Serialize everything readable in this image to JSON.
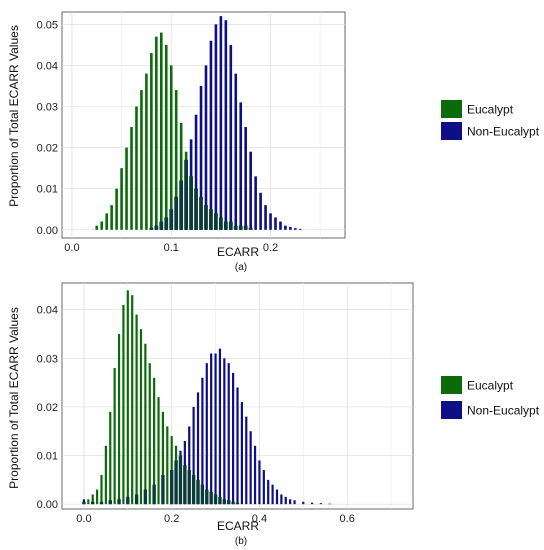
{
  "figure": {
    "y_label": "Proportion of Total ECARR Values"
  },
  "colors": {
    "eucalypt": "#0b6b0b",
    "non_eucalypt": "#0e0e87",
    "overlap": "#0a3a3a"
  },
  "chart_data": [
    {
      "type": "bar",
      "caption": "(a)",
      "xlabel": "ECARR",
      "xlim": [
        -0.01,
        0.275
      ],
      "ylim": [
        -0.002,
        0.053
      ],
      "x_ticks": [
        {
          "value": 0.0,
          "label": "0.0"
        },
        {
          "value": 0.1,
          "label": "0.1"
        },
        {
          "value": 0.2,
          "label": "0.2"
        }
      ],
      "y_ticks": [
        {
          "value": 0.0,
          "label": "0.00"
        },
        {
          "value": 0.01,
          "label": "0.01"
        },
        {
          "value": 0.02,
          "label": "0.02"
        },
        {
          "value": 0.03,
          "label": "0.03"
        },
        {
          "value": 0.04,
          "label": "0.04"
        },
        {
          "value": 0.05,
          "label": "0.05"
        }
      ],
      "grid": true,
      "legend_position": "right",
      "series": [
        {
          "name": "Eucalypt",
          "x": [
            0.025,
            0.03,
            0.035,
            0.04,
            0.045,
            0.05,
            0.055,
            0.06,
            0.065,
            0.07,
            0.075,
            0.08,
            0.085,
            0.09,
            0.095,
            0.1,
            0.105,
            0.11,
            0.115,
            0.12,
            0.125,
            0.13,
            0.135,
            0.14,
            0.145,
            0.15,
            0.155,
            0.16,
            0.165,
            0.17,
            0.175,
            0.18
          ],
          "values": [
            0.001,
            0.002,
            0.004,
            0.006,
            0.01,
            0.015,
            0.02,
            0.025,
            0.03,
            0.034,
            0.038,
            0.043,
            0.047,
            0.048,
            0.045,
            0.04,
            0.034,
            0.026,
            0.019,
            0.013,
            0.01,
            0.008,
            0.006,
            0.005,
            0.004,
            0.003,
            0.002,
            0.002,
            0.001,
            0.001,
            0.001,
            0.0005
          ]
        },
        {
          "name": "Non-Eucalypt",
          "x": [
            0.08,
            0.085,
            0.09,
            0.095,
            0.1,
            0.105,
            0.11,
            0.115,
            0.12,
            0.125,
            0.13,
            0.135,
            0.14,
            0.145,
            0.15,
            0.155,
            0.16,
            0.165,
            0.17,
            0.175,
            0.18,
            0.185,
            0.19,
            0.195,
            0.2,
            0.205,
            0.21,
            0.215,
            0.22,
            0.225,
            0.23
          ],
          "values": [
            0.0005,
            0.001,
            0.002,
            0.003,
            0.005,
            0.008,
            0.012,
            0.017,
            0.022,
            0.028,
            0.035,
            0.04,
            0.046,
            0.05,
            0.052,
            0.051,
            0.045,
            0.038,
            0.031,
            0.025,
            0.019,
            0.013,
            0.009,
            0.006,
            0.004,
            0.003,
            0.002,
            0.001,
            0.0007,
            0.0004,
            0.0002
          ]
        }
      ]
    },
    {
      "type": "bar",
      "caption": "(b)",
      "xlabel": "ECARR",
      "xlim": [
        -0.05,
        0.75
      ],
      "ylim": [
        -0.001,
        0.0455
      ],
      "x_ticks": [
        {
          "value": 0.0,
          "label": "0.0"
        },
        {
          "value": 0.2,
          "label": "0.2"
        },
        {
          "value": 0.4,
          "label": "0.4"
        },
        {
          "value": 0.6,
          "label": "0.6"
        }
      ],
      "y_ticks": [
        {
          "value": 0.0,
          "label": "0.00"
        },
        {
          "value": 0.01,
          "label": "0.01"
        },
        {
          "value": 0.02,
          "label": "0.02"
        },
        {
          "value": 0.03,
          "label": "0.03"
        },
        {
          "value": 0.04,
          "label": "0.04"
        }
      ],
      "grid": true,
      "legend_position": "right",
      "series": [
        {
          "name": "Eucalypt",
          "x": [
            0.0,
            0.01,
            0.02,
            0.03,
            0.04,
            0.05,
            0.06,
            0.07,
            0.08,
            0.09,
            0.1,
            0.11,
            0.12,
            0.13,
            0.14,
            0.15,
            0.16,
            0.17,
            0.18,
            0.19,
            0.2,
            0.21,
            0.22,
            0.23,
            0.24,
            0.25,
            0.26,
            0.27,
            0.28,
            0.29,
            0.3,
            0.31,
            0.32,
            0.33,
            0.34,
            0.35
          ],
          "values": [
            0.0005,
            0.001,
            0.002,
            0.003,
            0.006,
            0.012,
            0.019,
            0.028,
            0.035,
            0.041,
            0.044,
            0.043,
            0.039,
            0.036,
            0.033,
            0.029,
            0.026,
            0.022,
            0.019,
            0.016,
            0.014,
            0.012,
            0.01,
            0.008,
            0.007,
            0.006,
            0.005,
            0.004,
            0.003,
            0.0025,
            0.002,
            0.0015,
            0.001,
            0.0008,
            0.0005,
            0.0003
          ]
        },
        {
          "name": "Non-Eucalypt",
          "x": [
            0.0,
            0.02,
            0.04,
            0.06,
            0.08,
            0.1,
            0.12,
            0.14,
            0.16,
            0.18,
            0.2,
            0.21,
            0.22,
            0.23,
            0.24,
            0.25,
            0.26,
            0.27,
            0.28,
            0.29,
            0.3,
            0.31,
            0.32,
            0.33,
            0.34,
            0.35,
            0.36,
            0.37,
            0.38,
            0.39,
            0.4,
            0.41,
            0.42,
            0.43,
            0.44,
            0.45,
            0.46,
            0.47,
            0.48,
            0.5,
            0.52,
            0.54,
            0.56
          ],
          "values": [
            0.001,
            0.0005,
            0.0005,
            0.0008,
            0.001,
            0.0015,
            0.002,
            0.003,
            0.004,
            0.006,
            0.007,
            0.009,
            0.011,
            0.013,
            0.016,
            0.02,
            0.023,
            0.026,
            0.029,
            0.031,
            0.031,
            0.032,
            0.03,
            0.029,
            0.027,
            0.024,
            0.021,
            0.018,
            0.015,
            0.012,
            0.009,
            0.007,
            0.005,
            0.004,
            0.003,
            0.002,
            0.0015,
            0.001,
            0.0008,
            0.0005,
            0.0003,
            0.0002,
            0.0001
          ]
        }
      ]
    }
  ]
}
